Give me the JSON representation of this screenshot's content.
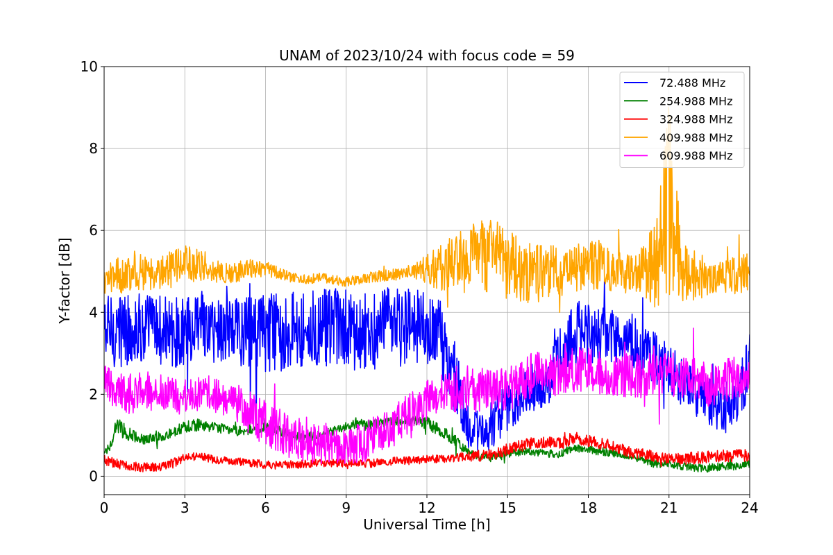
{
  "chart_data": {
    "type": "line",
    "title": "UNAM of 2023/10/24 with focus code = 59",
    "xlabel": "Universal Time [h]",
    "ylabel": "Y-factor [dB]",
    "xlim": [
      0,
      24
    ],
    "ylim": [
      -0.45,
      10
    ],
    "xticks": [
      0,
      3,
      6,
      9,
      12,
      15,
      18,
      21,
      24
    ],
    "xtick_labels": [
      "0",
      "3",
      "6",
      "9",
      "12",
      "15",
      "18",
      "21",
      "24"
    ],
    "yticks": [
      0,
      2,
      4,
      6,
      8,
      10
    ],
    "ytick_labels": [
      "0",
      "2",
      "4",
      "6",
      "8",
      "10"
    ],
    "grid": true,
    "legend_position": "top-right",
    "series": [
      {
        "name": " 72.488 MHz",
        "color": "#0000ff",
        "x": [
          0,
          0.5,
          1,
          1.5,
          2,
          2.5,
          3,
          3.5,
          4,
          4.5,
          5,
          5.5,
          6,
          6.5,
          7,
          7.5,
          8,
          8.5,
          9,
          9.5,
          10,
          10.5,
          11,
          11.5,
          12,
          12.5,
          13,
          13.5,
          14,
          14.5,
          15,
          15.5,
          16,
          16.5,
          17,
          17.5,
          18,
          18.5,
          19,
          19.5,
          20,
          20.5,
          21,
          21.5,
          22,
          22.5,
          23,
          23.5,
          24
        ],
        "y_mid": [
          3.55,
          3.55,
          3.6,
          3.6,
          3.55,
          3.5,
          3.5,
          3.55,
          3.6,
          3.6,
          3.55,
          3.5,
          3.5,
          3.55,
          3.6,
          3.6,
          3.6,
          3.6,
          3.55,
          3.55,
          3.6,
          3.6,
          3.65,
          3.65,
          3.6,
          3.4,
          2.5,
          1.3,
          1.0,
          1.3,
          1.7,
          2.0,
          2.2,
          2.3,
          3.0,
          3.5,
          3.5,
          3.45,
          3.4,
          3.35,
          3.0,
          2.8,
          2.6,
          2.3,
          2.0,
          1.8,
          1.7,
          1.9,
          2.8
        ],
        "y_amp": [
          0.9,
          0.9,
          0.9,
          0.9,
          0.9,
          0.85,
          0.9,
          0.9,
          0.9,
          0.9,
          0.9,
          0.9,
          1.0,
          1.0,
          1.0,
          1.0,
          1.0,
          1.0,
          1.0,
          1.0,
          1.0,
          1.0,
          1.0,
          1.0,
          0.9,
          0.9,
          0.9,
          0.6,
          0.5,
          0.6,
          0.6,
          0.6,
          0.6,
          0.6,
          0.7,
          0.8,
          0.8,
          0.7,
          0.7,
          0.7,
          0.7,
          0.7,
          0.6,
          0.6,
          0.6,
          0.6,
          0.6,
          0.6,
          0.9
        ]
      },
      {
        "name": "254.988 MHz",
        "color": "#008000",
        "x": [
          0,
          0.5,
          1,
          1.5,
          2,
          2.5,
          3,
          3.5,
          4,
          4.5,
          5,
          5.5,
          6,
          6.5,
          7,
          7.5,
          8,
          8.5,
          9,
          9.5,
          10,
          10.5,
          11,
          11.5,
          12,
          12.5,
          13,
          13.5,
          14,
          14.5,
          15,
          15.5,
          16,
          16.5,
          17,
          17.5,
          18,
          18.5,
          19,
          19.5,
          20,
          20.5,
          21,
          21.5,
          22,
          22.5,
          23,
          23.5,
          24
        ],
        "y_mid": [
          0.5,
          1.2,
          1.0,
          0.9,
          0.95,
          1.05,
          1.2,
          1.25,
          1.2,
          1.15,
          1.1,
          1.15,
          1.2,
          1.1,
          1.0,
          0.95,
          1.0,
          1.1,
          1.2,
          1.3,
          1.25,
          1.3,
          1.35,
          1.35,
          1.3,
          1.1,
          0.9,
          0.6,
          0.45,
          0.5,
          0.55,
          0.6,
          0.6,
          0.55,
          0.55,
          0.7,
          0.65,
          0.6,
          0.55,
          0.5,
          0.4,
          0.3,
          0.3,
          0.25,
          0.2,
          0.2,
          0.25,
          0.25,
          0.3
        ],
        "y_amp": [
          0.15,
          0.25,
          0.15,
          0.12,
          0.12,
          0.12,
          0.15,
          0.15,
          0.12,
          0.12,
          0.12,
          0.12,
          0.12,
          0.12,
          0.12,
          0.12,
          0.12,
          0.12,
          0.12,
          0.12,
          0.12,
          0.12,
          0.12,
          0.12,
          0.15,
          0.15,
          0.15,
          0.12,
          0.1,
          0.1,
          0.1,
          0.1,
          0.1,
          0.1,
          0.1,
          0.1,
          0.1,
          0.1,
          0.1,
          0.1,
          0.1,
          0.1,
          0.1,
          0.1,
          0.1,
          0.1,
          0.1,
          0.1,
          0.1
        ]
      },
      {
        "name": "324.988 MHz",
        "color": "#ff0000",
        "x": [
          0,
          0.5,
          1,
          1.5,
          2,
          2.5,
          3,
          3.5,
          4,
          4.5,
          5,
          5.5,
          6,
          6.5,
          7,
          7.5,
          8,
          8.5,
          9,
          9.5,
          10,
          10.5,
          11,
          11.5,
          12,
          12.5,
          13,
          13.5,
          14,
          14.5,
          15,
          15.5,
          16,
          16.5,
          17,
          17.5,
          18,
          18.5,
          19,
          19.5,
          20,
          20.5,
          21,
          21.5,
          22,
          22.5,
          23,
          23.5,
          24
        ],
        "y_mid": [
          0.4,
          0.3,
          0.25,
          0.22,
          0.22,
          0.3,
          0.45,
          0.5,
          0.42,
          0.38,
          0.35,
          0.32,
          0.28,
          0.27,
          0.28,
          0.3,
          0.32,
          0.33,
          0.32,
          0.3,
          0.32,
          0.35,
          0.38,
          0.38,
          0.42,
          0.42,
          0.45,
          0.48,
          0.5,
          0.55,
          0.65,
          0.75,
          0.8,
          0.82,
          0.8,
          0.95,
          0.85,
          0.8,
          0.7,
          0.6,
          0.55,
          0.45,
          0.45,
          0.42,
          0.45,
          0.48,
          0.5,
          0.5,
          0.52
        ],
        "y_amp": [
          0.12,
          0.12,
          0.12,
          0.12,
          0.12,
          0.12,
          0.1,
          0.1,
          0.1,
          0.1,
          0.1,
          0.1,
          0.1,
          0.1,
          0.1,
          0.1,
          0.1,
          0.1,
          0.1,
          0.1,
          0.1,
          0.1,
          0.1,
          0.1,
          0.1,
          0.1,
          0.1,
          0.12,
          0.15,
          0.15,
          0.15,
          0.15,
          0.15,
          0.15,
          0.15,
          0.15,
          0.15,
          0.15,
          0.15,
          0.15,
          0.15,
          0.15,
          0.15,
          0.15,
          0.15,
          0.15,
          0.15,
          0.15,
          0.15
        ]
      },
      {
        "name": "409.988 MHz",
        "color": "#ffa500",
        "x": [
          0,
          0.5,
          1,
          1.5,
          2,
          2.5,
          3,
          3.5,
          4,
          4.5,
          5,
          5.5,
          6,
          6.5,
          7,
          7.5,
          8,
          8.5,
          9,
          9.5,
          10,
          10.5,
          11,
          11.5,
          12,
          12.5,
          13,
          13.5,
          14,
          14.5,
          15,
          15.5,
          16,
          16.5,
          17,
          17.5,
          18,
          18.5,
          19,
          19.5,
          20,
          20.5,
          21,
          21.5,
          22,
          22.5,
          23,
          23.5,
          24
        ],
        "y_mid": [
          4.75,
          4.9,
          5.0,
          5.0,
          4.95,
          5.05,
          5.2,
          5.2,
          5.05,
          4.95,
          5.0,
          5.05,
          5.05,
          4.95,
          4.85,
          4.8,
          4.85,
          4.8,
          4.75,
          4.8,
          4.85,
          4.9,
          4.95,
          5.0,
          5.05,
          5.1,
          5.2,
          5.3,
          5.4,
          5.4,
          5.2,
          5.0,
          4.95,
          4.95,
          5.0,
          5.1,
          5.2,
          5.1,
          5.0,
          4.95,
          5.0,
          5.3,
          6.8,
          5.0,
          4.9,
          4.85,
          4.9,
          4.9,
          5.0
        ],
        "y_amp": [
          0.35,
          0.45,
          0.5,
          0.45,
          0.4,
          0.45,
          0.45,
          0.45,
          0.3,
          0.25,
          0.25,
          0.25,
          0.2,
          0.15,
          0.12,
          0.12,
          0.12,
          0.12,
          0.12,
          0.12,
          0.15,
          0.15,
          0.15,
          0.2,
          0.35,
          0.6,
          0.7,
          0.9,
          1.0,
          0.9,
          0.9,
          0.8,
          0.7,
          0.7,
          0.6,
          0.6,
          0.6,
          0.6,
          0.5,
          0.5,
          0.6,
          1.2,
          2.5,
          0.8,
          0.6,
          0.45,
          0.45,
          0.45,
          0.5
        ]
      },
      {
        "name": "609.988 MHz",
        "color": "#ff00ff",
        "x": [
          0,
          0.5,
          1,
          1.5,
          2,
          2.5,
          3,
          3.5,
          4,
          4.5,
          5,
          5.5,
          6,
          6.5,
          7,
          7.5,
          8,
          8.5,
          9,
          9.5,
          10,
          10.5,
          11,
          11.5,
          12,
          12.5,
          13,
          13.5,
          14,
          14.5,
          15,
          15.5,
          16,
          16.5,
          17,
          17.5,
          18,
          18.5,
          19,
          19.5,
          20,
          20.5,
          21,
          21.5,
          22,
          22.5,
          23,
          23.5,
          24
        ],
        "y_mid": [
          2.3,
          2.1,
          2.0,
          2.05,
          2.1,
          2.0,
          1.95,
          2.05,
          2.05,
          1.9,
          1.75,
          1.5,
          1.3,
          1.1,
          0.95,
          0.85,
          0.8,
          0.8,
          0.75,
          0.8,
          0.95,
          1.1,
          1.35,
          1.6,
          1.85,
          2.0,
          2.05,
          2.1,
          2.1,
          2.05,
          2.1,
          2.3,
          2.5,
          2.5,
          2.5,
          2.6,
          2.6,
          2.55,
          2.5,
          2.45,
          2.45,
          2.5,
          2.5,
          2.45,
          2.35,
          2.25,
          2.3,
          2.4,
          2.55
        ],
        "y_amp": [
          0.5,
          0.45,
          0.5,
          0.5,
          0.5,
          0.5,
          0.45,
          0.45,
          0.45,
          0.45,
          0.5,
          0.55,
          0.55,
          0.55,
          0.55,
          0.5,
          0.5,
          0.5,
          0.5,
          0.5,
          0.5,
          0.5,
          0.5,
          0.5,
          0.5,
          0.5,
          0.5,
          0.5,
          0.55,
          0.55,
          0.55,
          0.55,
          0.55,
          0.55,
          0.55,
          0.55,
          0.55,
          0.55,
          0.55,
          0.55,
          0.55,
          0.55,
          0.55,
          0.55,
          0.55,
          0.55,
          0.55,
          0.55,
          0.6
        ]
      }
    ]
  }
}
